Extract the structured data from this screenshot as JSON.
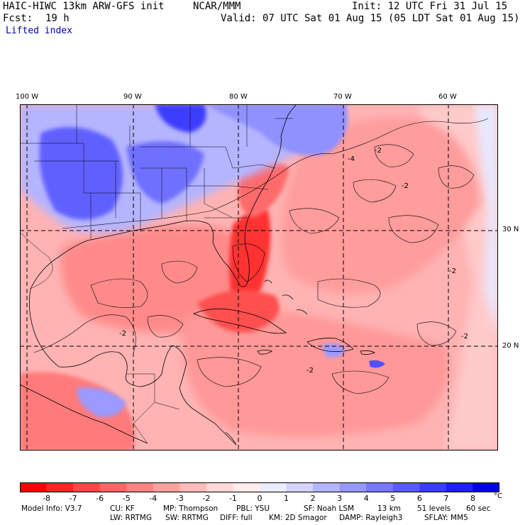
{
  "header": {
    "model_title": "HAIC-HIWC 13km ARW-GFS init",
    "center": "NCAR/MMM",
    "init": "Init: 12 UTC Fri 31 Jul 15",
    "fcst_label": "Fcst:",
    "fcst_value": "19 h",
    "valid": "Valid: 07 UTC Sat 01 Aug 15 (05 LDT Sat 01 Aug 15)",
    "field": "Lifted index"
  },
  "axes": {
    "lon_labels": [
      "100 W",
      "90 W",
      "80 W",
      "70 W",
      "60 W"
    ],
    "lat_labels": [
      "30 N",
      "20 N"
    ]
  },
  "contour_labels": [
    "-2",
    "-4",
    "-2",
    "-2",
    "-2",
    "-2",
    "-2"
  ],
  "colorbar": {
    "labels": [
      "-8",
      "-7",
      "-6",
      "-5",
      "-4",
      "-3",
      "-2",
      "-1",
      "0",
      "1",
      "2",
      "3",
      "4",
      "5",
      "6",
      "7",
      "8"
    ],
    "unit": "°C",
    "colors": [
      "#ff0000",
      "#ff2424",
      "#ff4646",
      "#ff6464",
      "#ff8282",
      "#ffa0a0",
      "#ffbcbc",
      "#ffd8d8",
      "#ffecec",
      "#ececff",
      "#d4d4ff",
      "#b4b4ff",
      "#9696ff",
      "#7878ff",
      "#5a5aff",
      "#3c3cff",
      "#1e1eff",
      "#0000e6"
    ]
  },
  "footer": {
    "line1": [
      "Model Info: V3.7",
      "CU: KF",
      "MP: Thompson",
      "PBL: YSU",
      "SF: Noah LSM",
      "13 km",
      "51 levels",
      "60 sec"
    ],
    "line2": [
      "LW: RRTMG",
      "SW: RRTMG",
      "DIFF: full",
      "KM: 2D Smagor",
      "DAMP: Rayleigh3",
      "SFLAY: MM5"
    ]
  }
}
